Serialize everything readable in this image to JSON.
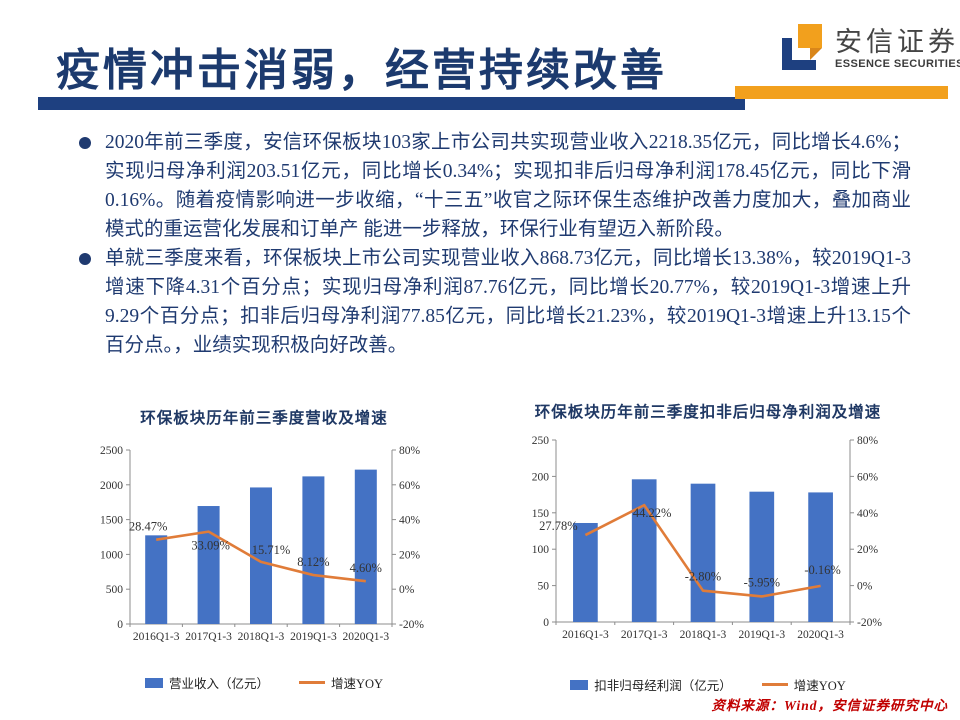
{
  "header": {
    "title": "疫情冲击消弱，经营持续改善",
    "logo_cn": "安信证券",
    "logo_en": "ESSENCE SECURITIES"
  },
  "bullets": [
    {
      "text": "2020年前三季度，安信环保板块103家上市公司共实现营业收入2218.35亿元，同比增长4.6%；实现归母净利润203.51亿元，同比增长0.34%；实现扣非后归母净利润178.45亿元，同比下滑0.16%。随着疫情影响进一步收缩，“十三五”收官之际环保生态维护改善力度加大，叠加商业模式的重运营化发展和订单产 能进一步释放，环保行业有望迈入新阶段。"
    },
    {
      "text": "单就三季度来看，环保板块上市公司实现营业收入868.73亿元，同比增长13.38%，较2019Q1-3增速下降4.31个百分点；实现归母净利润87.76亿元，同比增长20.77%，较2019Q1-3增速上升9.29个百分点；扣非后归母净利润77.85亿元，同比增长21.23%，较2019Q1-3增速上升13.15个百分点。，业绩实现积极向好改善。"
    }
  ],
  "chart_data": [
    {
      "type": "bar+line",
      "title": "环保板块历年前三季度营收及增速",
      "categories": [
        "2016Q1-3",
        "2017Q1-3",
        "2018Q1-3",
        "2019Q1-3",
        "2020Q1-3"
      ],
      "bar_name": "营业收入（亿元）",
      "bar_values": [
        1274,
        1695,
        1962,
        2121,
        2218
      ],
      "line_name": "增速YOY",
      "line_values": [
        28.47,
        33.09,
        15.71,
        8.12,
        4.6
      ],
      "line_labels": [
        "28.47%",
        "33.09%",
        "15.71%",
        "8.12%",
        "4.60%"
      ],
      "y_left_ticks": [
        "0",
        "500",
        "1000",
        "1500",
        "2000",
        "2500"
      ],
      "y_left_max": 2500,
      "y_right_ticks": [
        "-20%",
        "0%",
        "20%",
        "40%",
        "60%",
        "80%"
      ],
      "y_right_range": [
        -20,
        80
      ],
      "bar_color": "#4472C4",
      "line_color": "#E07C39",
      "legend_position": "bottom",
      "grid": false
    },
    {
      "type": "bar+line",
      "title": "环保板块历年前三季度扣非后归母净利润及增速",
      "categories": [
        "2016Q1-3",
        "2017Q1-3",
        "2018Q1-3",
        "2019Q1-3",
        "2020Q1-3"
      ],
      "bar_name": "扣非归母经利润（亿元）",
      "bar_values": [
        136,
        196,
        190,
        179,
        178
      ],
      "line_name": "增速YOY",
      "line_values": [
        27.78,
        44.22,
        -2.8,
        -5.95,
        -0.16
      ],
      "line_labels": [
        "27.78%",
        "44.22%",
        "-2.80%",
        "-5.95%",
        "-0.16%"
      ],
      "y_left_ticks": [
        "0",
        "50",
        "100",
        "150",
        "200",
        "250"
      ],
      "y_left_max": 250,
      "y_right_ticks": [
        "-20%",
        "0%",
        "20%",
        "40%",
        "60%",
        "80%"
      ],
      "y_right_range": [
        -20,
        80
      ],
      "bar_color": "#4472C4",
      "line_color": "#E07C39",
      "legend_position": "bottom",
      "grid": false
    }
  ],
  "footer": {
    "source": "资料来源：Wind，安信证券研究中心"
  },
  "palette": {
    "title_navy": "#1C3A6E",
    "rule_navy": "#1E4080",
    "rule_orange": "#F2A01D",
    "bar_blue": "#4472C4",
    "line_orange": "#E07C39",
    "source_red": "#C00000"
  }
}
